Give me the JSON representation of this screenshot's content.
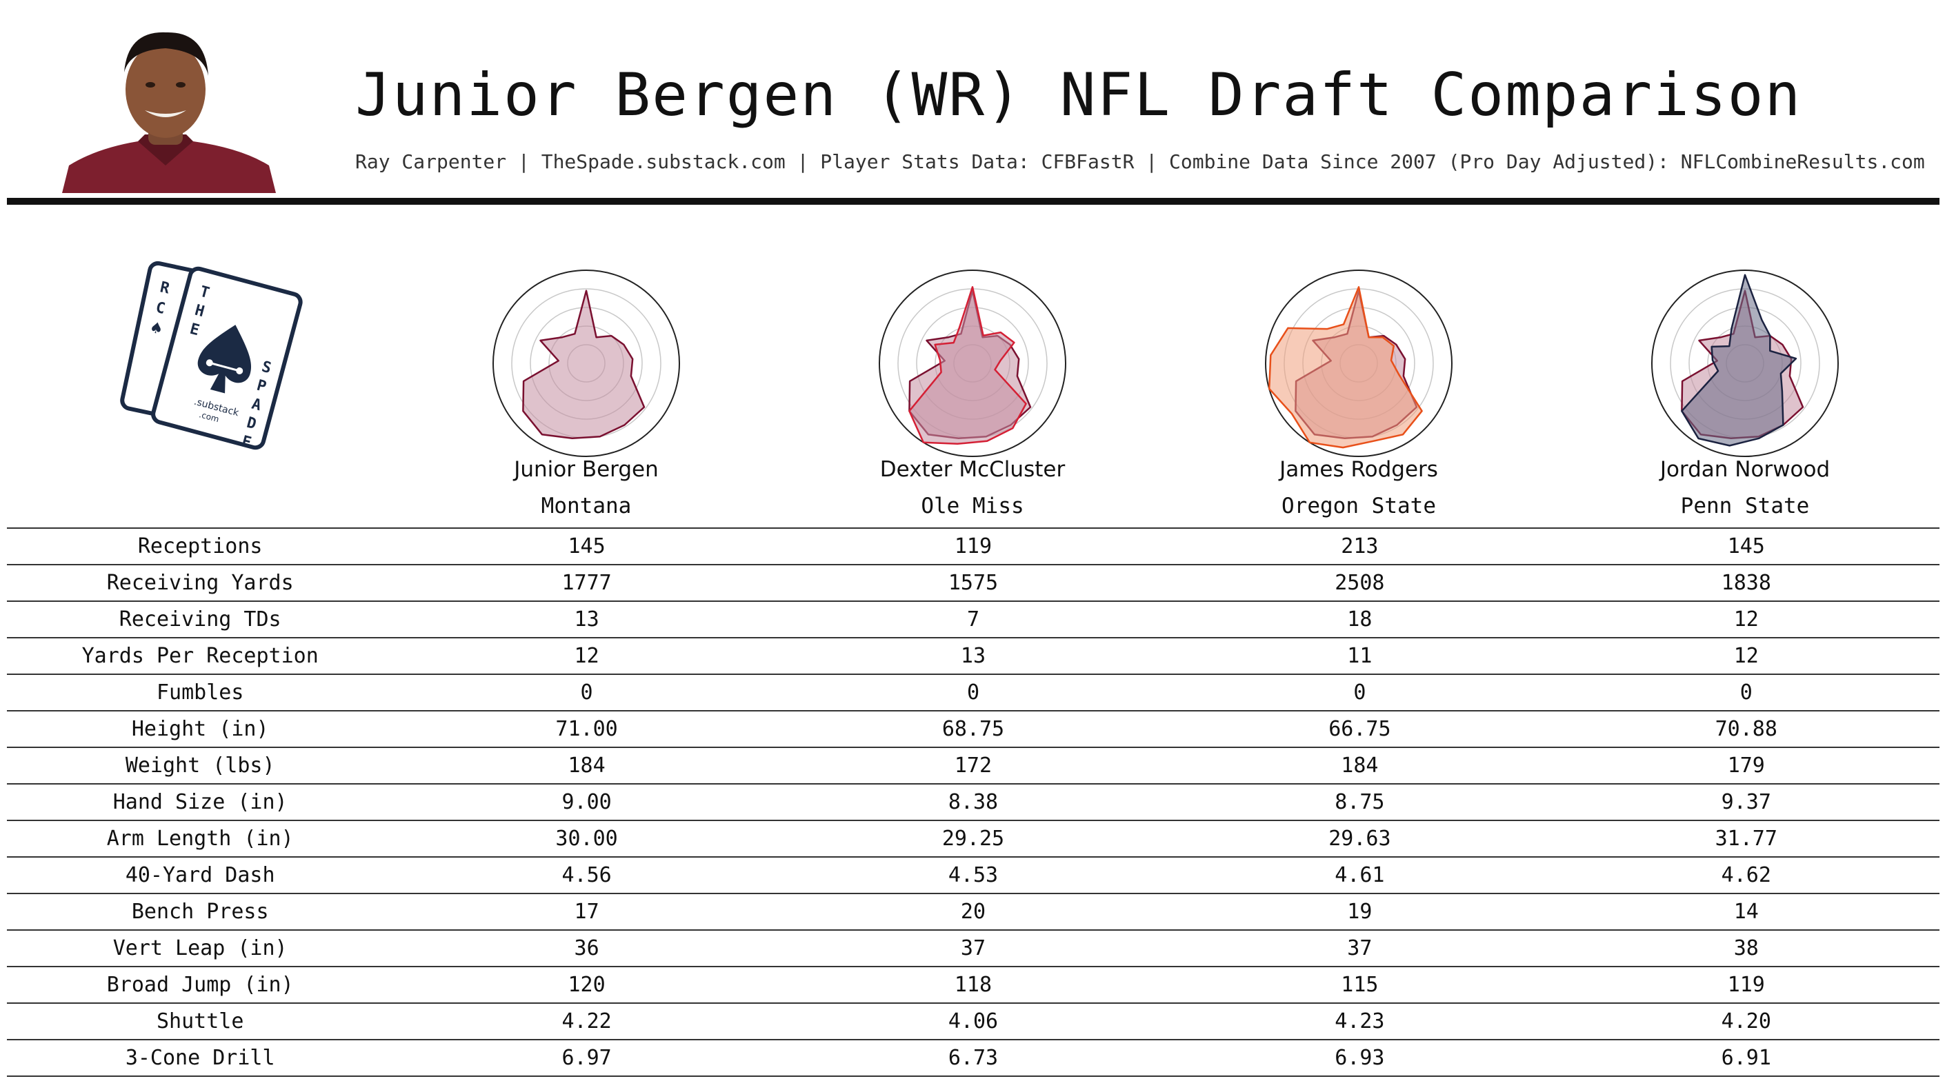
{
  "header": {
    "title": "Junior Bergen (WR) NFL Draft Comparison",
    "subtitle": "Ray Carpenter | TheSpade.substack.com | Player Stats Data: CFBFastR | Combine Data Since 2007 (Pro Day Adjusted): NFLCombineResults.com"
  },
  "logo": {
    "letters": [
      "R",
      "C",
      "T",
      "H",
      "E",
      "S",
      "P",
      "A",
      "D",
      "E"
    ],
    "substack": ".substack",
    "com": ".com"
  },
  "colors": {
    "maroon": "#7a1030",
    "maroon_fill": "#c58fa3",
    "red": "#d42035",
    "orange": "#e8501a",
    "orange_fill": "#f0a07e",
    "navy": "#1b2240",
    "navy_fill": "#6a6e88",
    "blue": "#2a4a8a"
  },
  "players": [
    {
      "name": "Junior Bergen",
      "school": "Montana"
    },
    {
      "name": "Dexter McCluster",
      "school": "Ole Miss"
    },
    {
      "name": "James Rodgers",
      "school": "Oregon State"
    },
    {
      "name": "Jordan Norwood",
      "school": "Penn State"
    }
  ],
  "chart_data": {
    "type": "table",
    "columns": [
      "Junior Bergen",
      "Dexter McCluster",
      "James Rodgers",
      "Jordan Norwood"
    ],
    "rows": [
      {
        "label": "Receptions",
        "values": [
          "145",
          "119",
          "213",
          "145"
        ]
      },
      {
        "label": "Receiving Yards",
        "values": [
          "1777",
          "1575",
          "2508",
          "1838"
        ]
      },
      {
        "label": "Receiving TDs",
        "values": [
          "13",
          "7",
          "18",
          "12"
        ]
      },
      {
        "label": "Yards Per Reception",
        "values": [
          "12",
          "13",
          "11",
          "12"
        ]
      },
      {
        "label": "Fumbles",
        "values": [
          "0",
          "0",
          "0",
          "0"
        ]
      },
      {
        "label": "Height (in)",
        "values": [
          "71.00",
          "68.75",
          "66.75",
          "70.88"
        ]
      },
      {
        "label": "Weight (lbs)",
        "values": [
          "184",
          "172",
          "184",
          "179"
        ]
      },
      {
        "label": "Hand Size (in)",
        "values": [
          "9.00",
          "8.38",
          "8.75",
          "9.37"
        ]
      },
      {
        "label": "Arm Length (in)",
        "values": [
          "30.00",
          "29.25",
          "29.63",
          "31.77"
        ]
      },
      {
        "label": "40-Yard Dash",
        "values": [
          "4.56",
          "4.53",
          "4.61",
          "4.62"
        ]
      },
      {
        "label": "Bench Press",
        "values": [
          "17",
          "20",
          "19",
          "14"
        ]
      },
      {
        "label": "Vert Leap (in)",
        "values": [
          "36",
          "37",
          "37",
          "38"
        ]
      },
      {
        "label": "Broad Jump (in)",
        "values": [
          "120",
          "118",
          "115",
          "119"
        ]
      },
      {
        "label": "Shuttle",
        "values": [
          "4.22",
          "4.06",
          "4.23",
          "4.20"
        ]
      },
      {
        "label": "3-Cone Drill",
        "values": [
          "6.97",
          "6.73",
          "6.93",
          "6.91"
        ]
      }
    ],
    "radar": {
      "scale": [
        0,
        1
      ],
      "base_player": "Junior Bergen",
      "base_values": [
        0.78,
        0.3,
        0.4,
        0.45,
        0.5,
        0.5,
        0.78,
        0.78,
        0.8,
        0.82,
        0.9,
        0.85,
        0.7,
        0.3,
        0.55,
        0.38,
        0.34
      ],
      "comparisons": [
        {
          "player": "Dexter McCluster",
          "values": [
            0.82,
            0.32,
            0.45,
            0.5,
            0.3,
            0.25,
            0.72,
            0.82,
            0.85,
            0.88,
            1.0,
            0.85,
            0.35,
            0.35,
            0.45,
            0.3,
            0.4
          ]
        },
        {
          "player": "James Rodgers",
          "values": [
            0.82,
            0.3,
            0.38,
            0.42,
            0.35,
            0.45,
            0.85,
            0.9,
            0.85,
            0.92,
            1.0,
            0.9,
            1.0,
            0.95,
            0.85,
            0.5,
            0.45
          ]
        },
        {
          "player": "Jordan Norwood",
          "values": [
            0.95,
            0.5,
            0.4,
            0.3,
            0.55,
            0.4,
            0.5,
            0.78,
            0.82,
            0.9,
            0.95,
            0.85,
            0.3,
            0.35,
            0.4,
            0.25,
            0.4
          ]
        }
      ]
    }
  }
}
